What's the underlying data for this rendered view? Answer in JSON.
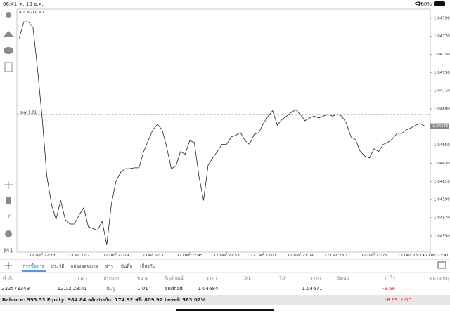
{
  "status_bar": {
    "time": "06:41",
    "date": "ศ. 13 ธ.ค.",
    "battery": "100%"
  },
  "chart": {
    "type": "line",
    "symbol_label": "AUDNZD, M1",
    "color": "#222222",
    "values": [
      1.04768,
      1.04786,
      1.04786,
      1.0478,
      1.04733,
      1.04679,
      1.04616,
      1.04585,
      1.04568,
      1.04589,
      1.04568,
      1.04563,
      1.04563,
      1.04573,
      1.04581,
      1.0456,
      1.04558,
      1.04556,
      1.04566,
      1.0454,
      1.04585,
      1.0461,
      1.0462,
      1.04624,
      1.04624,
      1.04625,
      1.04625,
      1.04643,
      1.04655,
      1.04667,
      1.04673,
      1.04667,
      1.04648,
      1.04624,
      1.04627,
      1.04643,
      1.0464,
      1.04655,
      1.04653,
      1.04616,
      1.04589,
      1.04628,
      1.04636,
      1.04643,
      1.04651,
      1.04651,
      1.04659,
      1.04661,
      1.04664,
      1.04655,
      1.04651,
      1.04662,
      1.04664,
      1.04674,
      1.04682,
      1.04688,
      1.04672,
      1.04678,
      1.04682,
      1.04686,
      1.04689,
      1.04684,
      1.04677,
      1.0468,
      1.04682,
      1.0468,
      1.04682,
      1.04684,
      1.04682,
      1.04684,
      1.04682,
      1.04674,
      1.04659,
      1.04656,
      1.04643,
      1.04638,
      1.04636,
      1.04646,
      1.04643,
      1.04651,
      1.04653,
      1.04657,
      1.04663,
      1.04663,
      1.04667,
      1.04669,
      1.04672,
      1.04674,
      1.04671
    ],
    "ylim": [
      1.04532,
      1.048
    ],
    "yticks": [
      {
        "value": 1.0479,
        "label": "1.04790"
      },
      {
        "value": 1.0477,
        "label": "1.04770"
      },
      {
        "value": 1.0475,
        "label": "1.04750"
      },
      {
        "value": 1.0473,
        "label": "1.04730"
      },
      {
        "value": 1.0471,
        "label": "1.04710"
      },
      {
        "value": 1.0469,
        "label": "1.04690"
      },
      {
        "value": 1.0465,
        "label": "1.04650"
      },
      {
        "value": 1.0463,
        "label": "1.04630"
      },
      {
        "value": 1.0461,
        "label": "1.04610"
      },
      {
        "value": 1.0459,
        "label": "1.04590"
      },
      {
        "value": 1.0457,
        "label": "1.04570"
      },
      {
        "value": 1.0455,
        "label": "1.04550"
      }
    ],
    "xlim": [
      -0.5,
      89.2
    ],
    "xticks": [
      {
        "value": 5,
        "label": "12 Dec 22:13"
      },
      {
        "value": 13,
        "label": "12 Dec 22:21"
      },
      {
        "value": 21,
        "label": "12 Dec 22:29"
      },
      {
        "value": 29,
        "label": "12 Dec 22:37"
      },
      {
        "value": 37,
        "label": "12 Dec 22:45"
      },
      {
        "value": 45,
        "label": "12 Dec 22:53"
      },
      {
        "value": 53,
        "label": "12 Dec 23:01"
      },
      {
        "value": 61,
        "label": "12 Dec 23:09"
      },
      {
        "value": 69,
        "label": "12 Dec 23:17"
      },
      {
        "value": 77,
        "label": "12 Dec 23:25"
      },
      {
        "value": 85,
        "label": "12 Dec 23:33"
      },
      {
        "value": 93,
        "label": "12 Dec 23:41"
      }
    ],
    "bid_price": 1.04671,
    "order_line": {
      "label": "buy 1.01",
      "value": 1.04684
    }
  },
  "left_toolbar": {
    "timeframe": "M1"
  },
  "tabs": [
    "การซื้อขาย",
    "ประวัติ",
    "กล่องจดหมาย",
    "ข่าว",
    "บันทึก",
    "เกี่ยวกับ"
  ],
  "table": {
    "header": [
      "คำสั่ง",
      "เวลา",
      "ประเภท",
      "ขนาด",
      "สัญลักษณ์",
      "ราคา",
      "S/L",
      "T/P",
      "ราคา",
      "Swap",
      "กำไร",
      "หมายเหตุ"
    ],
    "rows": [
      [
        "232573349",
        "12.12 23:41",
        "buy",
        "1.01",
        "audnzd",
        "1.04684",
        "",
        "",
        "1.04671",
        "",
        "-8.69",
        ""
      ]
    ]
  },
  "footer": {
    "summary": "Balance: 993.53 Equity: 984.84 หลักประกัน: 174.92 ฟรี: 809.92 Level: 563.02%",
    "profit": "-8.69",
    "currency": "USD"
  }
}
